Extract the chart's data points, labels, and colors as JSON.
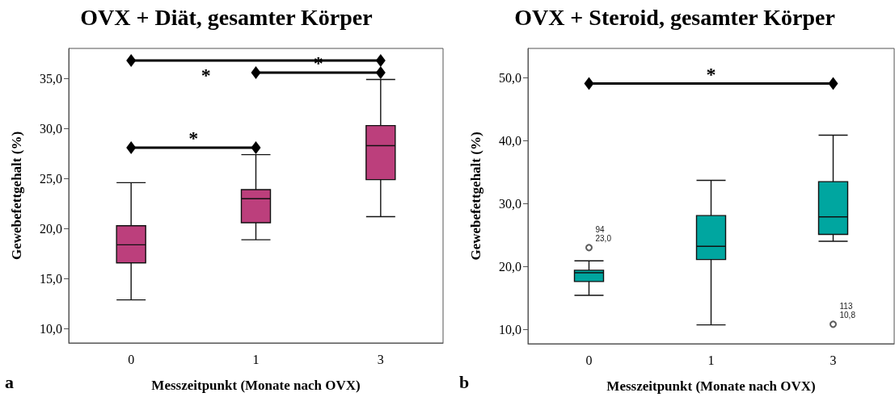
{
  "chart_data": [
    {
      "type": "box",
      "title": "OVX + Diät, gesamter Körper",
      "xlabel": "Messzeitpunkt (Monate nach OVX)",
      "ylabel": "Gewebefettgehalt (%)",
      "categories": [
        "0",
        "1",
        "3"
      ],
      "series": [
        {
          "color": "#bc3f7c",
          "boxes": [
            {
              "low": 12.9,
              "q1": 16.6,
              "median": 18.4,
              "q3": 20.3,
              "high": 24.6
            },
            {
              "low": 18.9,
              "q1": 20.6,
              "median": 23.0,
              "q3": 23.9,
              "high": 27.4
            },
            {
              "low": 21.2,
              "q1": 24.9,
              "median": 28.3,
              "q3": 30.3,
              "high": 34.9
            }
          ]
        }
      ],
      "ylim": [
        8.6,
        38.0
      ],
      "yticks": [
        {
          "value": 10,
          "label": "10,0"
        },
        {
          "value": 15,
          "label": "15,0"
        },
        {
          "value": 20,
          "label": "20,0"
        },
        {
          "value": 25,
          "label": "25,0"
        },
        {
          "value": 30,
          "label": "30,0"
        },
        {
          "value": 35,
          "label": "35,0"
        }
      ],
      "annotations": [
        "*",
        "*",
        "*",
        "a"
      ]
    },
    {
      "type": "box",
      "title": "OVX + Steroid, gesamter Körper",
      "xlabel": "Messzeitpunkt (Monate nach OVX)",
      "ylabel": "Gewebefettgehalt (%)",
      "categories": [
        "0",
        "1",
        "3"
      ],
      "series": [
        {
          "color": "#00a6a0",
          "boxes": [
            {
              "low": 15.4,
              "q1": 17.6,
              "median": 19.0,
              "q3": 19.4,
              "high": 20.9,
              "outliers": [
                23.0
              ]
            },
            {
              "low": 10.7,
              "q1": 21.1,
              "median": 23.2,
              "q3": 28.1,
              "high": 33.7
            },
            {
              "low": 24.0,
              "q1": 25.1,
              "median": 27.9,
              "q3": 33.5,
              "high": 40.9,
              "outliers": [
                10.8
              ]
            }
          ]
        }
      ],
      "ylim": [
        7.7,
        54.7
      ],
      "yticks": [
        {
          "value": 10,
          "label": "10,0"
        },
        {
          "value": 20,
          "label": "20,0"
        },
        {
          "value": 30,
          "label": "30,0"
        },
        {
          "value": 40,
          "label": "40,0"
        },
        {
          "value": 50,
          "label": "50,0"
        }
      ],
      "annotations": [
        "*",
        "94\n23,0",
        "113\n10,8",
        "b"
      ]
    }
  ]
}
